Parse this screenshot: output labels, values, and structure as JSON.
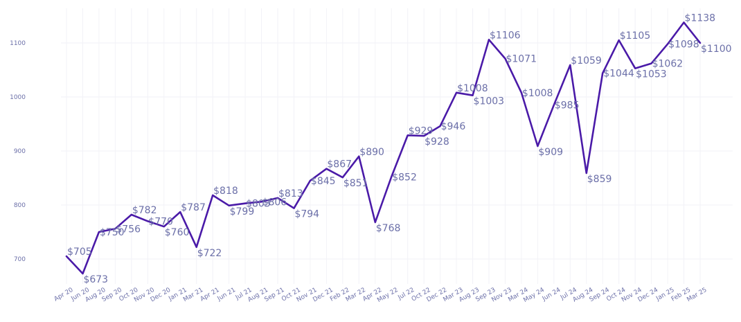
{
  "colors": {
    "line": "#4a1aa8",
    "labels": "#6b6fa8",
    "grid": "#f2f2f7"
  },
  "chart_data": {
    "type": "line",
    "title": "",
    "xlabel": "",
    "ylabel": "",
    "ylim": [
      640,
      1160
    ],
    "yticks": [
      700,
      800,
      900,
      1000,
      1100
    ],
    "grid": true,
    "categories": [
      "Apr 20",
      "Jun 20",
      "Aug 20",
      "Sep 20",
      "Oct 20",
      "Nov 20",
      "Dec 20",
      "Jan 21",
      "Mar 21",
      "Apr 21",
      "Jun 21",
      "Jul 21",
      "Aug 21",
      "Sep 21",
      "Oct 21",
      "Nov 21",
      "Dec 21",
      "Feb 22",
      "Mar 22",
      "Apr 22",
      "May 22",
      "Jul 22",
      "Oct 22",
      "Dec 22",
      "Mar 23",
      "Aug 23",
      "Sep 23",
      "Nov 23",
      "Mar 24",
      "May 24",
      "Jun 24",
      "Jul 24",
      "Aug 24",
      "Sep 24",
      "Oct 24",
      "Nov 24",
      "Dec 24",
      "Jan 25",
      "Feb 25",
      "Mar 25"
    ],
    "values": [
      705,
      673,
      750,
      756,
      782,
      770,
      760,
      787,
      722,
      818,
      799,
      803,
      806,
      813,
      794,
      845,
      867,
      851,
      890,
      768,
      852,
      929,
      928,
      946,
      1008,
      1003,
      1106,
      1071,
      1008,
      909,
      985,
      1059,
      859,
      1044,
      1105,
      1053,
      1062,
      1098,
      1138,
      1100
    ],
    "data_labels": [
      "$705",
      "$673",
      "$750",
      "$756",
      "$782",
      "$770",
      "$760",
      "$787",
      "$722",
      "$818",
      "$799",
      "$803",
      "$806",
      "$813",
      "$794",
      "$845",
      "$867",
      "$851",
      "$890",
      "$768",
      "$852",
      "$929",
      "$928",
      "$946",
      "$1008",
      "$1003",
      "$1106",
      "$1071",
      "$1008",
      "$909",
      "$985",
      "$1059",
      "$859",
      "$1044",
      "$1105",
      "$1053",
      "$1062",
      "$1098",
      "$1138",
      "$1100"
    ]
  }
}
